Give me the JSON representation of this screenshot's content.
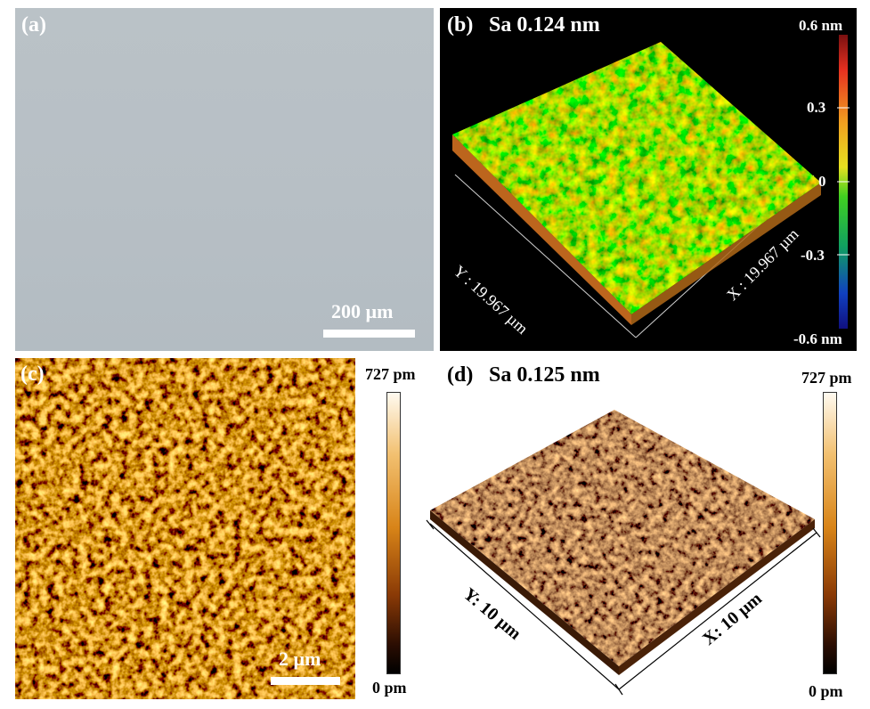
{
  "panel_a": {
    "label": "(a)",
    "scale_bar": "200 µm"
  },
  "panel_b": {
    "label": "(b)",
    "title": "Sa 0.124 nm",
    "colorbar": {
      "top": "0.6 nm",
      "t1": "0.3",
      "t2": "0",
      "t3": "-0.3",
      "bottom": "-0.6 nm"
    },
    "x_axis": "X : 19.967 µm",
    "y_axis": "Y : 19.967 µm"
  },
  "panel_c": {
    "label": "(c)",
    "scale_bar": "2 µm",
    "colorbar": {
      "top": "727 pm",
      "bottom": "0 pm"
    }
  },
  "panel_d": {
    "label": "(d)",
    "title": "Sa 0.125 nm",
    "colorbar": {
      "top": "727 pm",
      "bottom": "0 pm"
    },
    "x_axis": "X: 10 µm",
    "y_axis": "Y: 10 µm"
  },
  "colors": {
    "panel_a_bg": "#b9c1c6",
    "panel_b_bg": "#000000",
    "afm_dark": "#2a1404",
    "afm_bright": "#f5c040"
  }
}
